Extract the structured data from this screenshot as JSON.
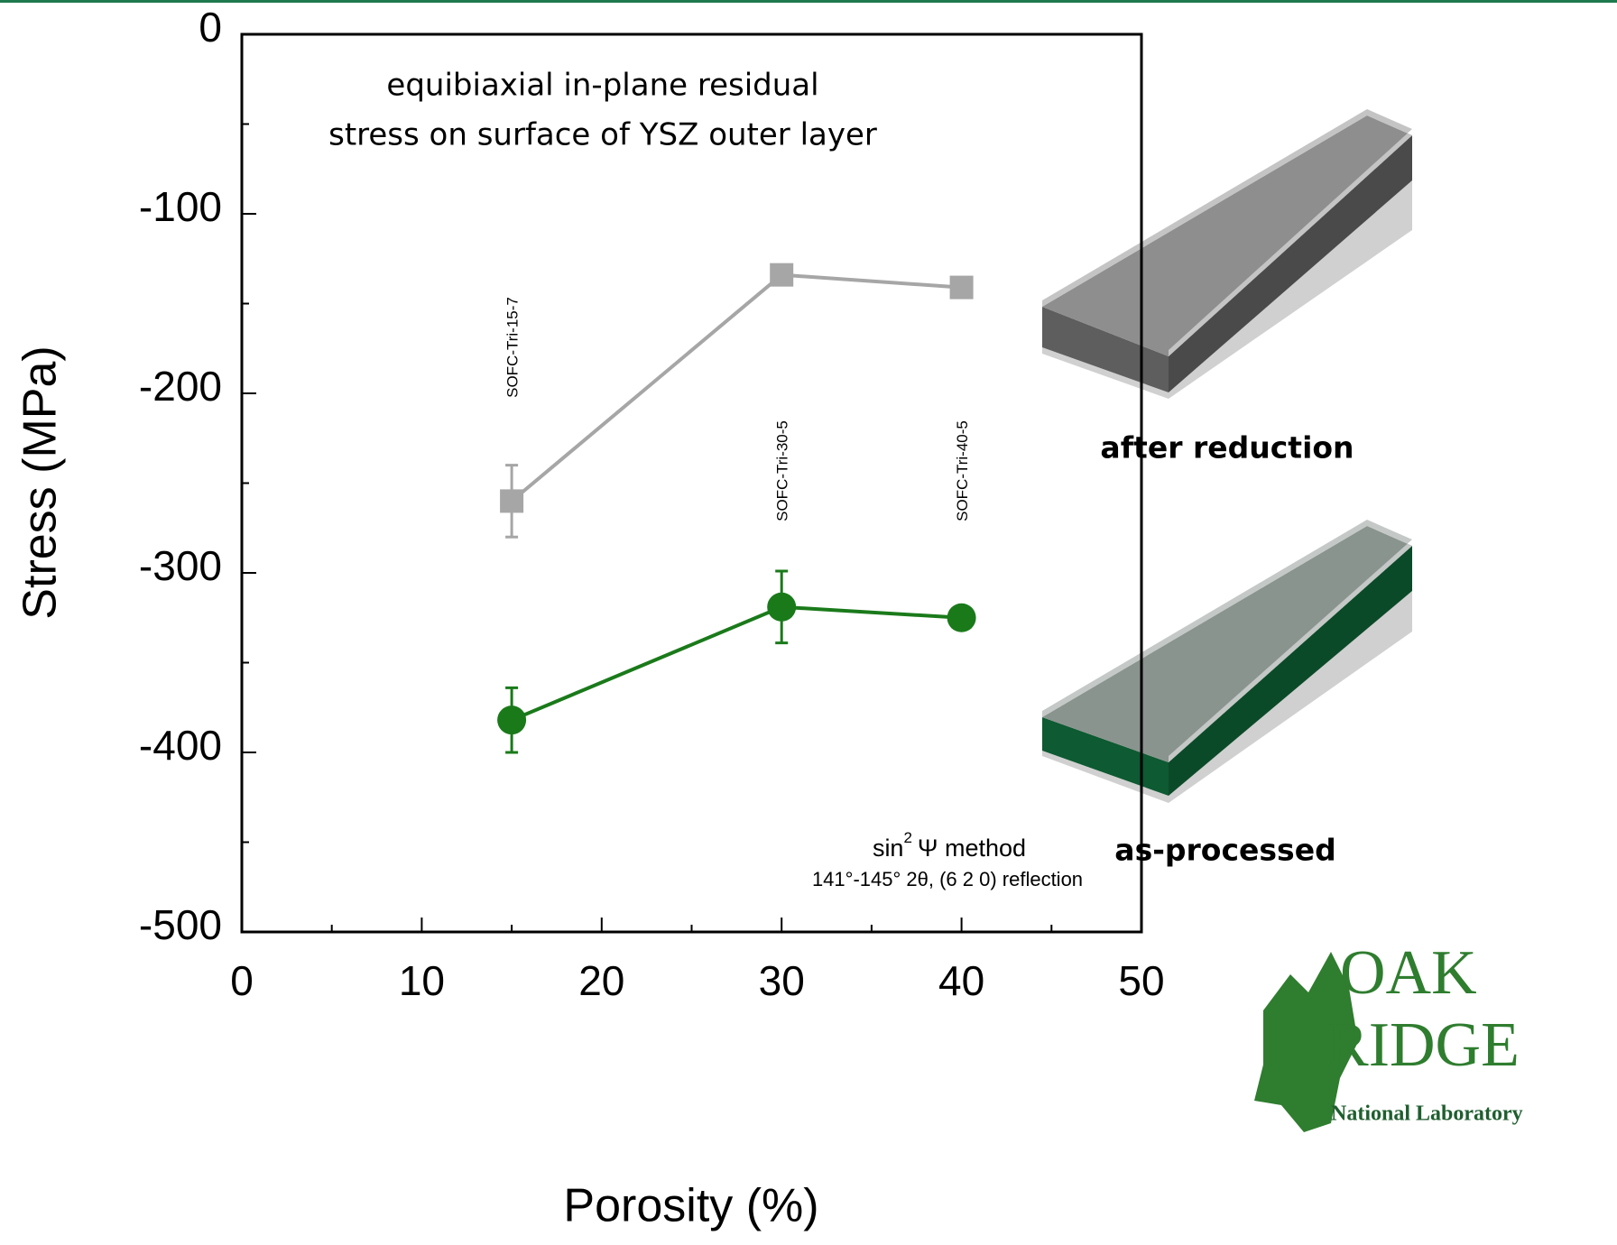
{
  "chart_data": {
    "type": "line",
    "annotation": [
      "equibiaxial in-plane residual",
      "stress on surface of YSZ outer layer"
    ],
    "method": [
      "sin",
      "2",
      "Ψ method"
    ],
    "method_detail": "141°-145° 2θ, (6 2 0) reflection",
    "xlabel": "Porosity (%)",
    "ylabel": "Stress (MPa)",
    "x": [
      15,
      30,
      40
    ],
    "sample_labels": [
      "SOFC-Tri-15-7",
      "SOFC-Tri-30-5",
      "SOFC-Tri-40-5"
    ],
    "series": [
      {
        "name": "after reduction",
        "color": "#a6a6a6",
        "marker": "square",
        "values": [
          -260,
          -134,
          -141
        ],
        "errors": [
          20,
          4,
          5
        ]
      },
      {
        "name": "as-processed",
        "color": "#1a7a1a",
        "marker": "circle",
        "values": [
          -382,
          -319,
          -325
        ],
        "errors": [
          18,
          20,
          5
        ]
      }
    ],
    "xlim": [
      0,
      50
    ],
    "xticks": [
      0,
      10,
      20,
      30,
      40,
      50
    ],
    "x_minor_ticks": [
      5,
      15,
      25,
      35,
      45
    ],
    "ylim": [
      -500,
      0
    ],
    "yticks": [
      0,
      -100,
      -200,
      -300,
      -400,
      -500
    ],
    "y_minor_ticks": [
      -50,
      -150,
      -250,
      -350,
      -450
    ],
    "logo": [
      "OAK",
      "RIDGE",
      "National Laboratory"
    ]
  }
}
